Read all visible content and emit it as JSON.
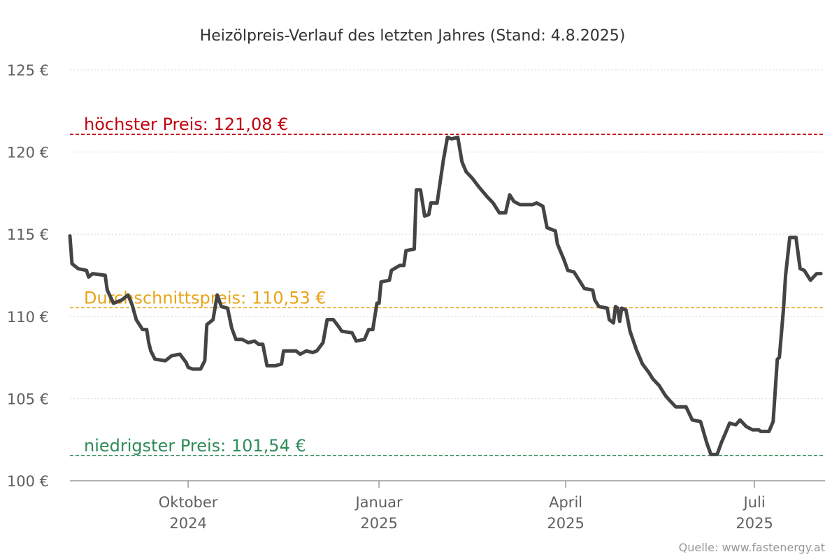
{
  "chart_data": {
    "type": "line",
    "title": "Heizölpreis-Verlauf des letzten Jahres (Stand: 4.8.2025)",
    "source": "Quelle: www.fastenergy.at",
    "ylim": [
      100,
      125
    ],
    "yticks": [
      {
        "value": 100,
        "label": "100 €"
      },
      {
        "value": 105,
        "label": "105 €"
      },
      {
        "value": 110,
        "label": "110 €"
      },
      {
        "value": 115,
        "label": "115 €"
      },
      {
        "value": 120,
        "label": "120 €"
      },
      {
        "value": 125,
        "label": "125 €"
      }
    ],
    "xlim": [
      "2024-08-05",
      "2025-08-04"
    ],
    "xticks": [
      {
        "date": "2024-10-01",
        "month": "Oktober",
        "year": "2024"
      },
      {
        "date": "2025-01-01",
        "month": "Januar",
        "year": "2025"
      },
      {
        "date": "2025-04-01",
        "month": "April",
        "year": "2025"
      },
      {
        "date": "2025-07-01",
        "month": "Juli",
        "year": "2025"
      }
    ],
    "grid": true,
    "reference_lines": [
      {
        "label": "höchster Preis: 121,08 €",
        "value": 121.08,
        "color": "#c0000e"
      },
      {
        "label": "Durchschnittspreis: 110,53 €",
        "value": 110.53,
        "color": "#e8a317"
      },
      {
        "label": "niedrigster Preis: 101,54 €",
        "value": 101.54,
        "color": "#2e8b57"
      }
    ],
    "series": [
      {
        "color": "#444444",
        "points": [
          [
            "2024-08-05",
            114.9
          ],
          [
            "2024-08-06",
            113.2
          ],
          [
            "2024-08-09",
            112.9
          ],
          [
            "2024-08-13",
            112.8
          ],
          [
            "2024-08-14",
            112.4
          ],
          [
            "2024-08-16",
            112.6
          ],
          [
            "2024-08-22",
            112.5
          ],
          [
            "2024-08-23",
            111.6
          ],
          [
            "2024-08-26",
            110.8
          ],
          [
            "2024-08-30",
            111.0
          ],
          [
            "2024-09-02",
            111.3
          ],
          [
            "2024-09-04",
            110.7
          ],
          [
            "2024-09-06",
            109.8
          ],
          [
            "2024-09-09",
            109.2
          ],
          [
            "2024-09-11",
            109.2
          ],
          [
            "2024-09-12",
            108.4
          ],
          [
            "2024-09-13",
            107.9
          ],
          [
            "2024-09-15",
            107.4
          ],
          [
            "2024-09-20",
            107.3
          ],
          [
            "2024-09-23",
            107.6
          ],
          [
            "2024-09-27",
            107.7
          ],
          [
            "2024-09-30",
            107.2
          ],
          [
            "2024-10-01",
            106.9
          ],
          [
            "2024-10-03",
            106.8
          ],
          [
            "2024-10-07",
            106.8
          ],
          [
            "2024-10-09",
            107.3
          ],
          [
            "2024-10-10",
            109.5
          ],
          [
            "2024-10-13",
            109.8
          ],
          [
            "2024-10-15",
            111.3
          ],
          [
            "2024-10-17",
            110.6
          ],
          [
            "2024-10-20",
            110.5
          ],
          [
            "2024-10-22",
            109.3
          ],
          [
            "2024-10-24",
            108.6
          ],
          [
            "2024-10-27",
            108.6
          ],
          [
            "2024-10-30",
            108.4
          ],
          [
            "2024-11-02",
            108.5
          ],
          [
            "2024-11-04",
            108.3
          ],
          [
            "2024-11-06",
            108.3
          ],
          [
            "2024-11-08",
            107.0
          ],
          [
            "2024-11-12",
            107.0
          ],
          [
            "2024-11-15",
            107.1
          ],
          [
            "2024-11-16",
            107.9
          ],
          [
            "2024-11-22",
            107.9
          ],
          [
            "2024-11-24",
            107.7
          ],
          [
            "2024-11-27",
            107.9
          ],
          [
            "2024-11-30",
            107.8
          ],
          [
            "2024-12-02",
            107.9
          ],
          [
            "2024-12-05",
            108.4
          ],
          [
            "2024-12-07",
            109.8
          ],
          [
            "2024-12-10",
            109.8
          ],
          [
            "2024-12-13",
            109.3
          ],
          [
            "2024-12-14",
            109.1
          ],
          [
            "2024-12-19",
            109.0
          ],
          [
            "2024-12-21",
            108.5
          ],
          [
            "2024-12-25",
            108.6
          ],
          [
            "2024-12-27",
            109.2
          ],
          [
            "2024-12-29",
            109.2
          ],
          [
            "2024-12-31",
            110.8
          ],
          [
            "2025-01-01",
            110.8
          ],
          [
            "2025-01-02",
            112.1
          ],
          [
            "2025-01-06",
            112.2
          ],
          [
            "2025-01-07",
            112.8
          ],
          [
            "2025-01-11",
            113.1
          ],
          [
            "2025-01-13",
            113.1
          ],
          [
            "2025-01-14",
            114.0
          ],
          [
            "2025-01-18",
            114.1
          ],
          [
            "2025-01-19",
            117.7
          ],
          [
            "2025-01-21",
            117.7
          ],
          [
            "2025-01-23",
            116.1
          ],
          [
            "2025-01-25",
            116.2
          ],
          [
            "2025-01-26",
            116.9
          ],
          [
            "2025-01-29",
            116.9
          ],
          [
            "2025-02-01",
            119.5
          ],
          [
            "2025-02-03",
            120.9
          ],
          [
            "2025-02-05",
            120.8
          ],
          [
            "2025-02-08",
            120.9
          ],
          [
            "2025-02-10",
            119.4
          ],
          [
            "2025-02-12",
            118.8
          ],
          [
            "2025-02-15",
            118.4
          ],
          [
            "2025-02-18",
            117.9
          ],
          [
            "2025-02-22",
            117.3
          ],
          [
            "2025-02-25",
            116.9
          ],
          [
            "2025-02-28",
            116.3
          ],
          [
            "2025-03-03",
            116.3
          ],
          [
            "2025-03-05",
            117.4
          ],
          [
            "2025-03-07",
            117.0
          ],
          [
            "2025-03-10",
            116.8
          ],
          [
            "2025-03-16",
            116.8
          ],
          [
            "2025-03-18",
            116.9
          ],
          [
            "2025-03-21",
            116.7
          ],
          [
            "2025-03-23",
            115.4
          ],
          [
            "2025-03-27",
            115.2
          ],
          [
            "2025-03-28",
            114.4
          ],
          [
            "2025-03-31",
            113.5
          ],
          [
            "2025-04-02",
            112.8
          ],
          [
            "2025-04-05",
            112.7
          ],
          [
            "2025-04-08",
            112.1
          ],
          [
            "2025-04-10",
            111.7
          ],
          [
            "2025-04-14",
            111.6
          ],
          [
            "2025-04-15",
            111.0
          ],
          [
            "2025-04-17",
            110.6
          ],
          [
            "2025-04-21",
            110.5
          ],
          [
            "2025-04-22",
            109.8
          ],
          [
            "2025-04-24",
            109.6
          ],
          [
            "2025-04-25",
            110.6
          ],
          [
            "2025-04-26",
            110.5
          ],
          [
            "2025-04-27",
            109.7
          ],
          [
            "2025-04-28",
            110.5
          ],
          [
            "2025-04-30",
            110.4
          ],
          [
            "2025-05-02",
            109.1
          ],
          [
            "2025-05-05",
            108.0
          ],
          [
            "2025-05-08",
            107.1
          ],
          [
            "2025-05-11",
            106.6
          ],
          [
            "2025-05-13",
            106.2
          ],
          [
            "2025-05-16",
            105.8
          ],
          [
            "2025-05-19",
            105.2
          ],
          [
            "2025-05-21",
            104.9
          ],
          [
            "2025-05-24",
            104.5
          ],
          [
            "2025-05-29",
            104.5
          ],
          [
            "2025-06-01",
            103.7
          ],
          [
            "2025-06-05",
            103.6
          ],
          [
            "2025-06-08",
            102.3
          ],
          [
            "2025-06-10",
            101.6
          ],
          [
            "2025-06-13",
            101.6
          ],
          [
            "2025-06-15",
            102.3
          ],
          [
            "2025-06-17",
            102.9
          ],
          [
            "2025-06-19",
            103.5
          ],
          [
            "2025-06-22",
            103.4
          ],
          [
            "2025-06-24",
            103.7
          ],
          [
            "2025-06-27",
            103.3
          ],
          [
            "2025-06-30",
            103.1
          ],
          [
            "2025-07-03",
            103.1
          ],
          [
            "2025-07-04",
            103.0
          ],
          [
            "2025-07-08",
            103.0
          ],
          [
            "2025-07-10",
            103.6
          ],
          [
            "2025-07-12",
            107.4
          ],
          [
            "2025-07-13",
            107.5
          ],
          [
            "2025-07-15",
            110.5
          ],
          [
            "2025-07-16",
            112.5
          ],
          [
            "2025-07-18",
            114.8
          ],
          [
            "2025-07-21",
            114.8
          ],
          [
            "2025-07-23",
            112.9
          ],
          [
            "2025-07-25",
            112.8
          ],
          [
            "2025-07-28",
            112.2
          ],
          [
            "2025-07-31",
            112.6
          ],
          [
            "2025-08-02",
            112.6
          ]
        ]
      }
    ]
  }
}
